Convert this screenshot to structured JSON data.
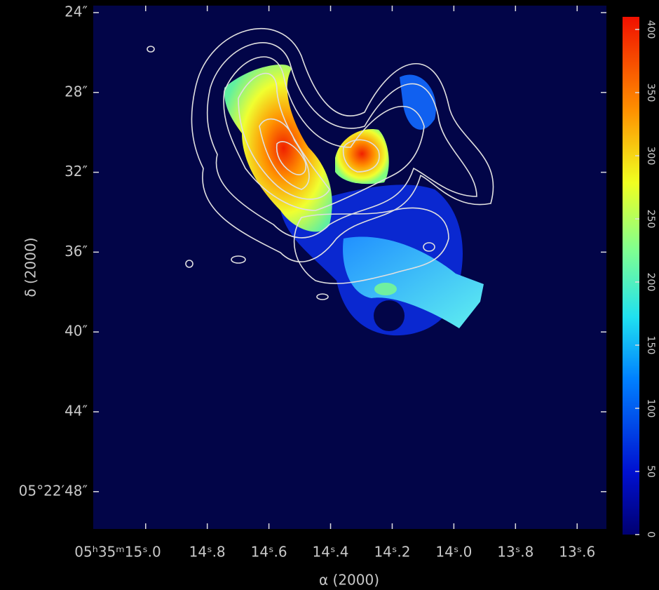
{
  "chart_data": {
    "type": "heatmap",
    "xlabel": "α (2000)",
    "ylabel": "δ (2000)",
    "xlim": [
      15.17,
      13.505
    ],
    "xticks": [
      {
        "value": 15.0,
        "label": "05ʰ35ᵐ15ˢ.0"
      },
      {
        "value": 14.8,
        "label": "14ˢ.8"
      },
      {
        "value": 14.6,
        "label": "14ˢ.6"
      },
      {
        "value": 14.4,
        "label": "14ˢ.4"
      },
      {
        "value": 14.2,
        "label": "14ˢ.2"
      },
      {
        "value": 14.0,
        "label": "14ˢ.0"
      },
      {
        "value": 13.8,
        "label": "13ˢ.8"
      },
      {
        "value": 13.6,
        "label": "13ˢ.6"
      }
    ],
    "ylim": [
      49.87,
      23.65
    ],
    "yticks": [
      {
        "value": 24,
        "label": "24″"
      },
      {
        "value": 28,
        "label": "28″"
      },
      {
        "value": 32,
        "label": "32″"
      },
      {
        "value": 36,
        "label": "36″"
      },
      {
        "value": 40,
        "label": "40″"
      },
      {
        "value": 44,
        "label": "44″"
      },
      {
        "value": 48,
        "label": "05°22′48″"
      }
    ],
    "clim": [
      0,
      410
    ],
    "cticks": [
      0,
      50,
      100,
      150,
      200,
      250,
      300,
      350,
      400
    ]
  }
}
